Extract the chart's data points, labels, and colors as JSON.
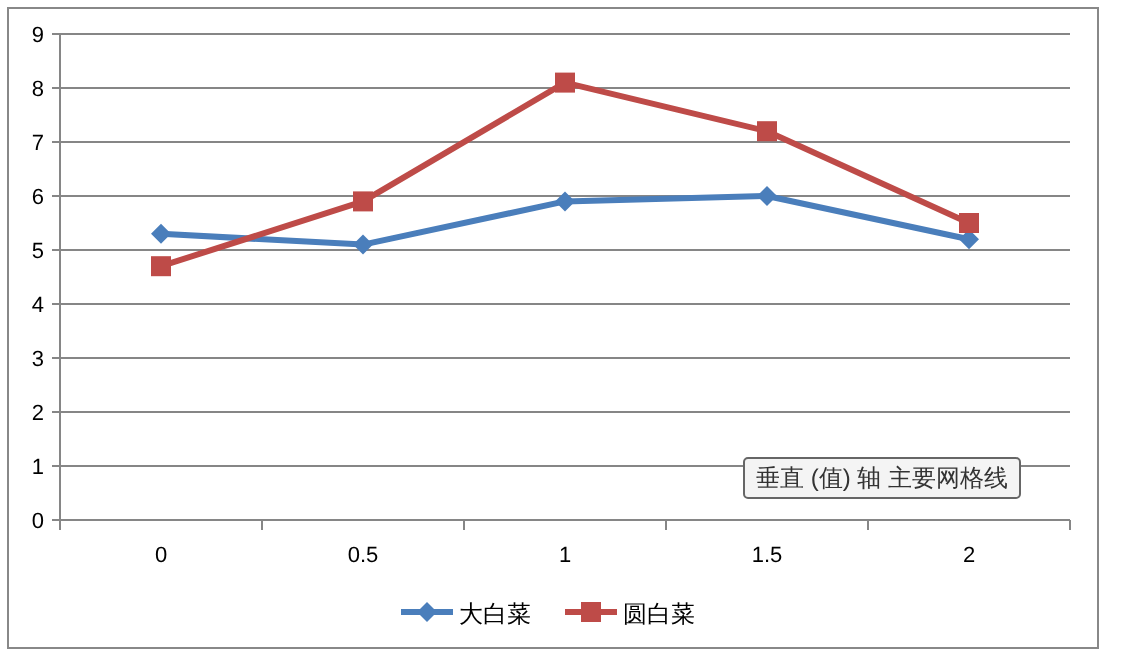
{
  "chart_data": {
    "type": "line",
    "categories": [
      "0",
      "0.5",
      "1",
      "1.5",
      "2"
    ],
    "series": [
      {
        "name": "大白菜",
        "color": "#4a7ebb",
        "marker": "diamond",
        "values": [
          5.3,
          5.1,
          5.9,
          6.0,
          5.2
        ]
      },
      {
        "name": "圆白菜",
        "color": "#be4b48",
        "marker": "square",
        "values": [
          4.7,
          5.9,
          8.1,
          7.2,
          5.5
        ]
      }
    ],
    "ylim": [
      0,
      9
    ],
    "yticks": [
      0,
      1,
      2,
      3,
      4,
      5,
      6,
      7,
      8,
      9
    ],
    "grid": "y",
    "legend": "bottom",
    "annotations": [
      "垂直 (值) 轴 主要网格线"
    ]
  }
}
